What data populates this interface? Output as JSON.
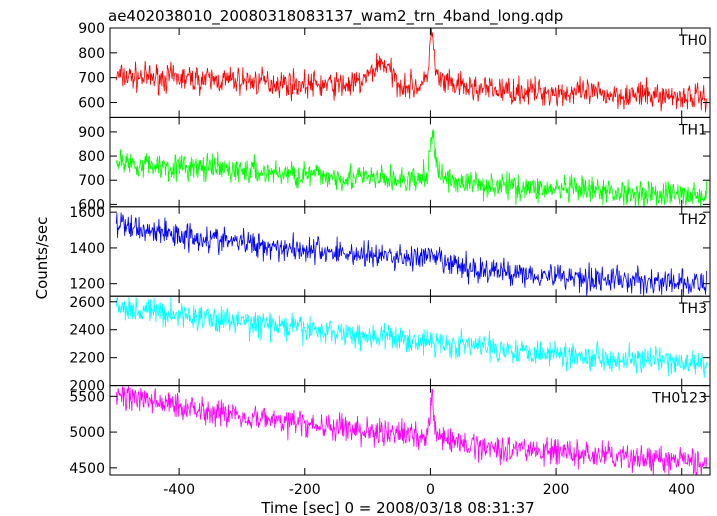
{
  "chart_data": {
    "type": "line",
    "title": "ae402038010_20080318083137_wam2_trn_4band_long.qdp",
    "xlabel": "Time [sec] 0 = 2008/03/18 08:31:37",
    "ylabel": "Counts/sec",
    "xlim": [
      -510,
      445
    ],
    "x_ticks": [
      -400,
      -200,
      0,
      200,
      400
    ],
    "grid": false,
    "panels": [
      {
        "name": "TH0",
        "color": "#ff0000",
        "ylim": [
          540,
          900
        ],
        "y_ticks": [
          600,
          700,
          800,
          900
        ],
        "x": [
          -500,
          -450,
          -400,
          -350,
          -300,
          -250,
          -200,
          -150,
          -120,
          -100,
          -90,
          -80,
          -70,
          -60,
          -50,
          -30,
          -10,
          -2,
          0,
          2,
          4,
          8,
          15,
          30,
          60,
          100,
          150,
          200,
          250,
          300,
          350,
          400,
          440
        ],
        "y": [
          705,
          700,
          698,
          690,
          688,
          680,
          672,
          670,
          672,
          700,
          735,
          765,
          750,
          705,
          678,
          665,
          668,
          760,
          880,
          900,
          840,
          720,
          685,
          670,
          658,
          650,
          645,
          640,
          636,
          632,
          628,
          624,
          622
        ]
      },
      {
        "name": "TH1",
        "color": "#00ff00",
        "ylim": [
          590,
          960
        ],
        "y_ticks": [
          600,
          700,
          800,
          900
        ],
        "x": [
          -500,
          -450,
          -400,
          -350,
          -300,
          -250,
          -200,
          -150,
          -100,
          -50,
          -20,
          -5,
          0,
          2,
          4,
          8,
          20,
          50,
          100,
          150,
          200,
          250,
          300,
          350,
          400,
          440
        ],
        "y": [
          775,
          765,
          755,
          748,
          740,
          730,
          722,
          715,
          708,
          700,
          698,
          720,
          850,
          920,
          860,
          780,
          710,
          690,
          680,
          670,
          662,
          655,
          650,
          645,
          640,
          635
        ]
      },
      {
        "name": "TH2",
        "color": "#0000ff",
        "ylim": [
          1130,
          1630
        ],
        "y_ticks": [
          1200,
          1400,
          1600
        ],
        "x": [
          -500,
          -450,
          -400,
          -350,
          -300,
          -250,
          -200,
          -150,
          -100,
          -50,
          0,
          50,
          100,
          150,
          200,
          250,
          300,
          350,
          400,
          440
        ],
        "y": [
          1530,
          1500,
          1475,
          1450,
          1430,
          1410,
          1392,
          1375,
          1360,
          1348,
          1345,
          1290,
          1270,
          1260,
          1245,
          1232,
          1222,
          1212,
          1200,
          1195
        ]
      },
      {
        "name": "TH3",
        "color": "#00ffff",
        "ylim": [
          2000,
          2640
        ],
        "y_ticks": [
          2000,
          2200,
          2400,
          2600
        ],
        "x": [
          -500,
          -450,
          -400,
          -350,
          -300,
          -250,
          -200,
          -150,
          -100,
          -50,
          0,
          50,
          100,
          150,
          200,
          250,
          300,
          350,
          400,
          440
        ],
        "y": [
          2560,
          2535,
          2505,
          2480,
          2455,
          2430,
          2405,
          2382,
          2358,
          2335,
          2310,
          2290,
          2270,
          2250,
          2232,
          2212,
          2195,
          2178,
          2160,
          2145
        ]
      },
      {
        "name": "TH0123",
        "color": "#ff00ff",
        "ylim": [
          4400,
          5650
        ],
        "y_ticks": [
          4500,
          5000,
          5500
        ],
        "x": [
          -500,
          -450,
          -400,
          -350,
          -300,
          -250,
          -200,
          -150,
          -100,
          -50,
          -10,
          -2,
          0,
          2,
          4,
          8,
          20,
          50,
          100,
          150,
          200,
          250,
          300,
          350,
          400,
          440
        ],
        "y": [
          5520,
          5440,
          5370,
          5300,
          5230,
          5170,
          5110,
          5060,
          5010,
          4970,
          4950,
          5100,
          5400,
          5600,
          5350,
          5000,
          4880,
          4830,
          4790,
          4760,
          4720,
          4680,
          4650,
          4620,
          4590,
          4570
        ]
      }
    ]
  }
}
